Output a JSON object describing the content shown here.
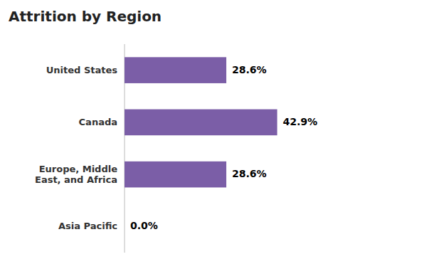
{
  "chart_data": {
    "type": "bar",
    "orientation": "horizontal",
    "title": "Attrition by Region",
    "categories": [
      "United States",
      "Canada",
      "Europe, Middle\nEast, and Africa",
      "Asia Pacific"
    ],
    "values": [
      28.6,
      42.9,
      28.6,
      0.0
    ],
    "value_labels": [
      "28.6%",
      "42.9%",
      "28.6%",
      "0.0%"
    ],
    "data_labels": true,
    "color": "#7B5EA7",
    "xlim": [
      0,
      70
    ],
    "tick_labels": "y",
    "grid": false
  }
}
